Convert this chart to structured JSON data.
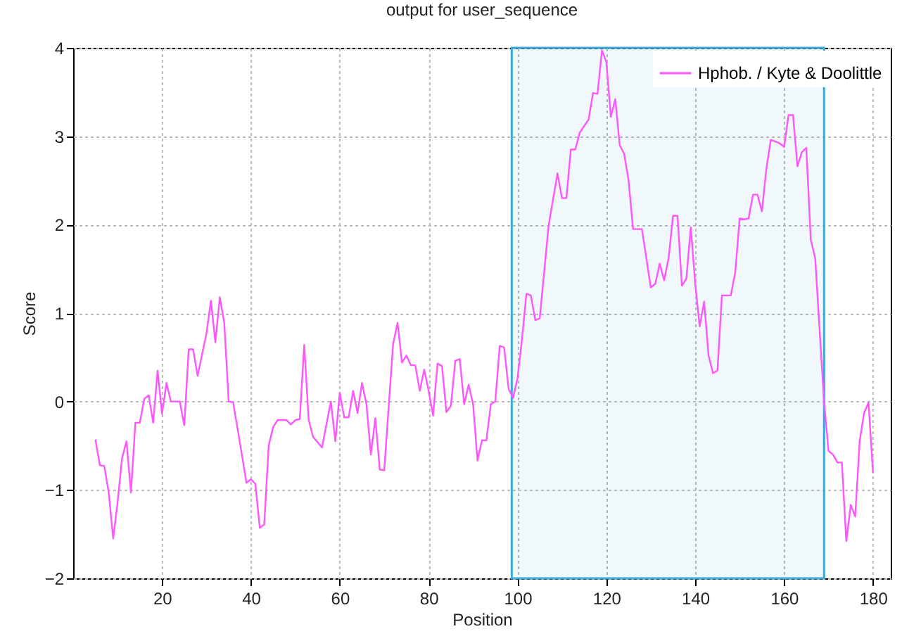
{
  "chart_data": {
    "type": "line",
    "title": "output for user_sequence",
    "xlabel": "Position",
    "ylabel": "Score",
    "x": [
      5,
      6,
      7,
      8,
      9,
      10,
      11,
      12,
      13,
      14,
      15,
      16,
      17,
      18,
      19,
      20,
      21,
      22,
      24,
      25,
      26,
      27,
      28,
      30,
      31,
      32,
      33,
      34,
      35,
      36,
      38,
      39,
      40,
      41,
      42,
      43,
      44,
      45,
      46,
      48,
      49,
      50,
      51,
      52,
      53,
      54,
      56,
      58,
      59,
      60,
      61,
      62,
      63,
      64,
      65,
      66,
      67,
      68,
      69,
      70,
      72,
      73,
      74,
      75,
      76,
      77,
      78,
      79,
      80,
      81,
      82,
      83,
      84,
      85,
      86,
      87,
      88,
      89,
      90,
      91,
      92,
      93,
      94,
      95,
      96,
      97,
      98,
      99,
      100,
      101,
      102,
      103,
      104,
      105,
      107,
      109,
      110,
      111,
      112,
      113,
      114,
      116,
      117,
      118,
      119,
      120,
      121,
      122,
      123,
      124,
      125,
      126,
      128,
      130,
      131,
      132,
      133,
      134,
      135,
      136,
      137,
      138,
      139,
      140,
      141,
      142,
      143,
      144,
      145,
      146,
      148,
      149,
      150,
      151,
      152,
      153,
      154,
      155,
      156,
      157,
      159,
      160,
      161,
      162,
      163,
      164,
      165,
      166,
      167,
      168,
      169,
      170,
      171,
      172,
      173,
      174,
      175,
      176,
      177,
      178,
      179,
      180
    ],
    "series": [
      {
        "name": "Hphob. / Kyte & Doolittle",
        "color": "#ff55ff",
        "values": [
          -0.43,
          -0.72,
          -0.73,
          -1.03,
          -1.55,
          -1.14,
          -0.64,
          -0.45,
          -1.03,
          -0.24,
          -0.24,
          0.03,
          0.07,
          -0.24,
          0.35,
          -0.14,
          0.21,
          0,
          0,
          -0.27,
          0.59,
          0.59,
          0.29,
          0.77,
          1.14,
          0.67,
          1.18,
          0.89,
          0,
          -0.01,
          -0.61,
          -0.92,
          -0.88,
          -0.93,
          -1.43,
          -1.39,
          -0.5,
          -0.29,
          -0.21,
          -0.21,
          -0.26,
          -0.21,
          -0.2,
          0.64,
          -0.21,
          -0.4,
          -0.52,
          0,
          -0.45,
          0.1,
          -0.18,
          -0.18,
          0.12,
          -0.13,
          0.21,
          -0.03,
          -0.6,
          -0.19,
          -0.77,
          -0.78,
          0.65,
          0.89,
          0.44,
          0.52,
          0.41,
          0.41,
          0.12,
          0.36,
          0.12,
          -0.16,
          0.43,
          0.4,
          -0.12,
          -0.05,
          0.46,
          0.48,
          -0.03,
          0.19,
          -0.03,
          -0.67,
          -0.44,
          -0.44,
          -0.03,
          0,
          0.63,
          0.61,
          0.14,
          0.04,
          0.26,
          0.7,
          1.22,
          1.2,
          0.92,
          0.94,
          1.99,
          2.58,
          2.3,
          2.3,
          2.85,
          2.85,
          3.04,
          3.19,
          3.49,
          3.48,
          3.97,
          3.84,
          3.22,
          3.42,
          2.9,
          2.8,
          2.5,
          1.95,
          1.95,
          1.29,
          1.33,
          1.56,
          1.37,
          1.62,
          2.1,
          2.1,
          1.31,
          1.39,
          1.97,
          1.33,
          0.85,
          1.13,
          0.52,
          0.32,
          0.35,
          1.2,
          1.2,
          1.46,
          2.07,
          2.06,
          2.07,
          2.34,
          2.34,
          2.15,
          2.63,
          2.96,
          2.92,
          2.88,
          3.24,
          3.24,
          2.66,
          2.82,
          2.87,
          1.83,
          1.62,
          0.8,
          -0.01,
          -0.56,
          -0.6,
          -0.69,
          -0.69,
          -1.58,
          -1.17,
          -1.3,
          -0.45,
          -0.13,
          -0.01,
          -0.81
        ]
      }
    ],
    "xlim": [
      0,
      184
    ],
    "xticks": [
      20,
      40,
      60,
      80,
      100,
      120,
      140,
      160,
      180
    ],
    "ylim": [
      -2,
      4
    ],
    "yticks": [
      -2,
      -1,
      0,
      1,
      2,
      3,
      4
    ],
    "bands": [
      {
        "axis": "x",
        "from": 98.7,
        "to": 169,
        "color": "#3aa8d8"
      }
    ],
    "grid": true,
    "legend": "top right"
  }
}
